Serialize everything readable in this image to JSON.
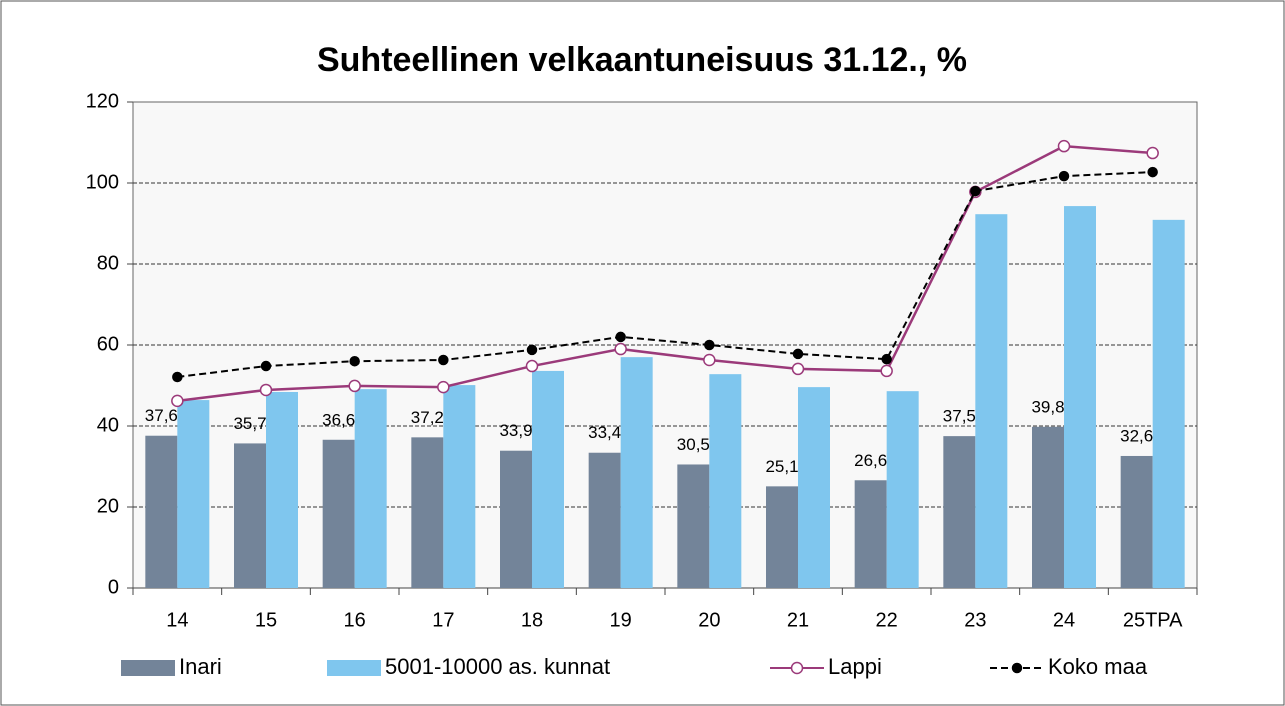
{
  "chart_data": {
    "type": "bar",
    "title": "Suhteellinen velkaantuneisuus 31.12., %",
    "categories": [
      "14",
      "15",
      "16",
      "17",
      "18",
      "19",
      "20",
      "21",
      "22",
      "23",
      "24",
      "25TPA"
    ],
    "series": [
      {
        "name": "Inari",
        "type": "bar",
        "color": "#738499",
        "values": [
          37.6,
          35.7,
          36.6,
          37.2,
          33.9,
          33.4,
          30.5,
          25.1,
          26.6,
          37.5,
          39.8,
          32.6
        ],
        "value_labels": [
          "37,6",
          "35,7",
          "36,6",
          "37,2",
          "33,9",
          "33,4",
          "30,5",
          "25,1",
          "26,6",
          "37,5",
          "39,8",
          "32,6"
        ]
      },
      {
        "name": "5001-10000 as. kunnat",
        "type": "bar",
        "color": "#7fc6ee",
        "values": [
          46.4,
          48.4,
          49.1,
          50.1,
          53.6,
          57.0,
          52.8,
          49.6,
          48.6,
          92.3,
          94.3,
          90.9
        ]
      },
      {
        "name": "Lappi",
        "type": "line",
        "color": "#9b3a7a",
        "marker": "open",
        "values": [
          46.2,
          48.9,
          49.9,
          49.6,
          54.8,
          59.0,
          56.3,
          54.1,
          53.6,
          97.8,
          109.1,
          107.4
        ]
      },
      {
        "name": "Koko maa",
        "type": "line",
        "color": "#000000",
        "marker": "filled",
        "dashed": true,
        "values": [
          52.1,
          54.8,
          56.0,
          56.3,
          58.8,
          62.0,
          60.0,
          57.8,
          56.5,
          98.0,
          101.7,
          102.7
        ]
      }
    ],
    "ylim": [
      0,
      120
    ],
    "yticks": [
      0,
      20,
      40,
      60,
      80,
      100,
      120
    ],
    "grid": true,
    "legend": "bottom"
  }
}
